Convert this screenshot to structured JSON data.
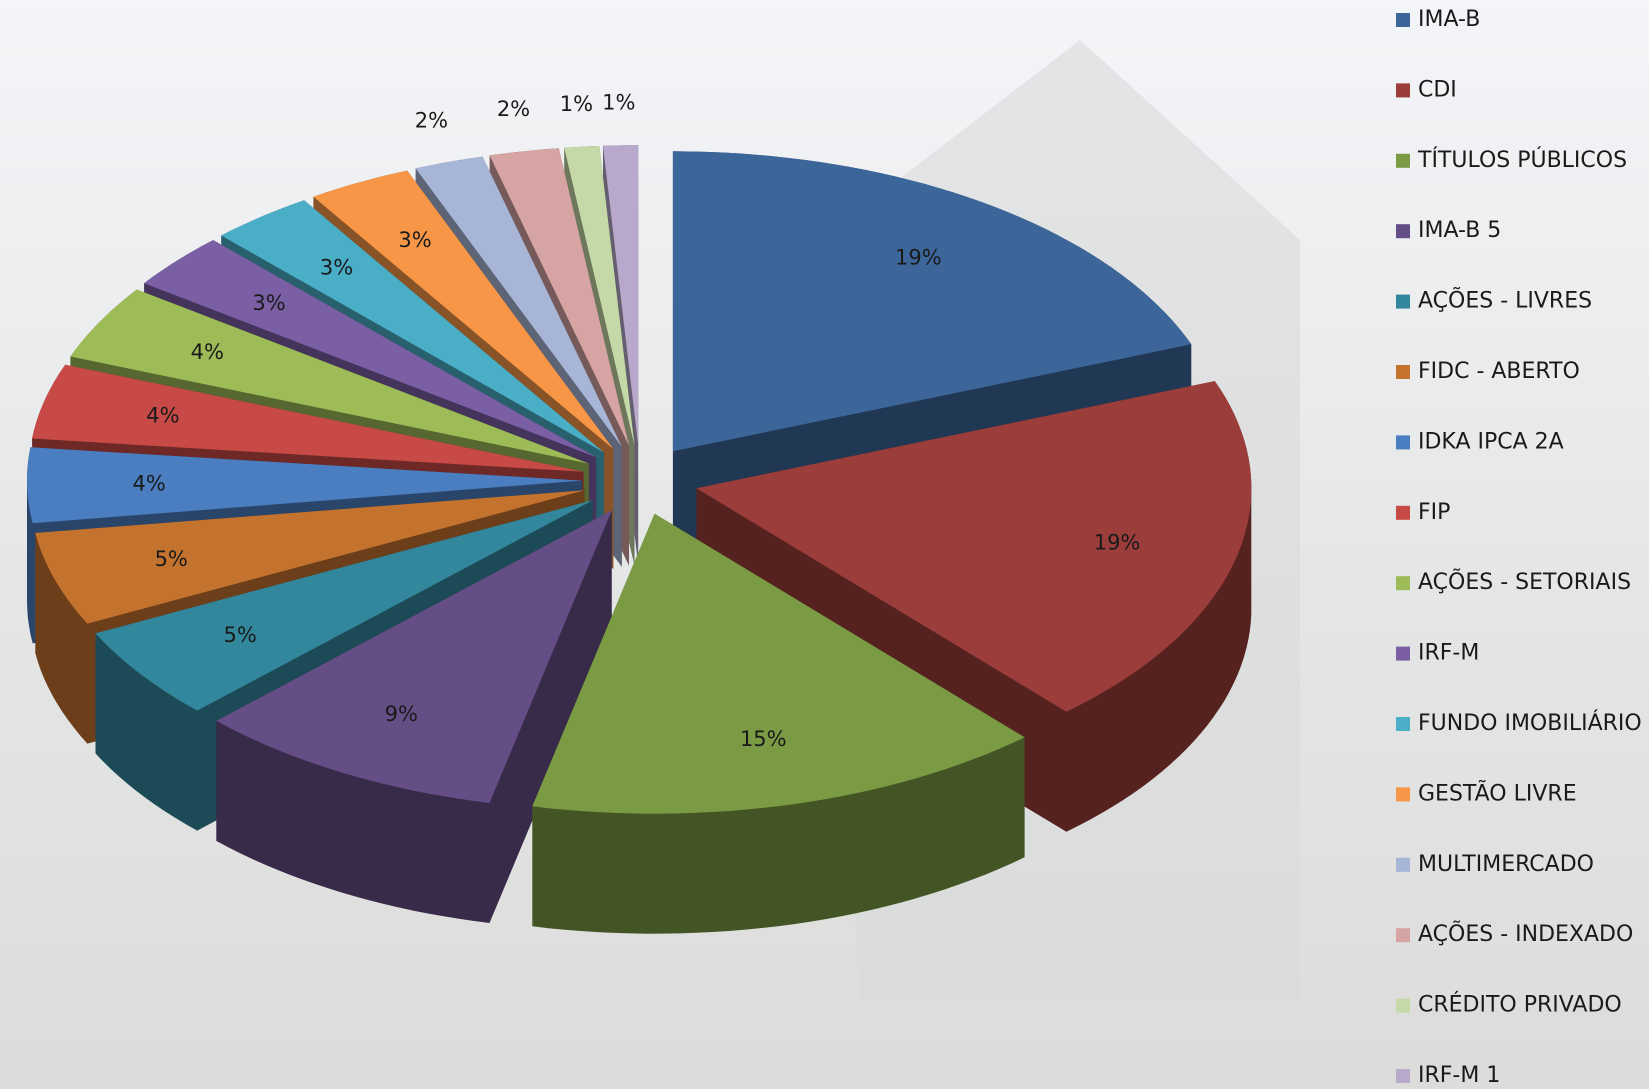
{
  "chart_data": {
    "type": "pie",
    "categories": [
      "IMA-B",
      "CDI",
      "TÍTULOS PÚBLICOS",
      "IMA-B 5",
      "AÇÕES - LIVRES",
      "FIDC - ABERTO",
      "IDKA IPCA 2A",
      "FIP",
      "AÇÕES - SETORIAIS",
      "IRF-M",
      "FUNDO IMOBILIÁRIO",
      "GESTÃO LIVRE",
      "MULTIMERCADO",
      "AÇÕES - INDEXADO",
      "CRÉDITO PRIVADO",
      "IRF-M 1"
    ],
    "values": [
      19,
      19,
      15,
      9,
      5,
      5,
      4,
      4,
      4,
      3,
      3,
      3,
      2,
      2,
      1,
      1
    ],
    "value_labels": [
      "19%",
      "19%",
      "15%",
      "9%",
      "5%",
      "5%",
      "4%",
      "4%",
      "4%",
      "3%",
      "3%",
      "3%",
      "2%",
      "2%",
      "1%",
      "1%"
    ],
    "colors": [
      "#3c6699",
      "#9b3d3b",
      "#7b9a44",
      "#654d85",
      "#33879d",
      "#c4732f",
      "#4a7ec0",
      "#c84a47",
      "#9dbb56",
      "#7b5fa5",
      "#4aaec7",
      "#f79646",
      "#a7b5d6",
      "#d6a4a3",
      "#c5d9a8",
      "#b8a9cc"
    ],
    "legend": "right"
  }
}
